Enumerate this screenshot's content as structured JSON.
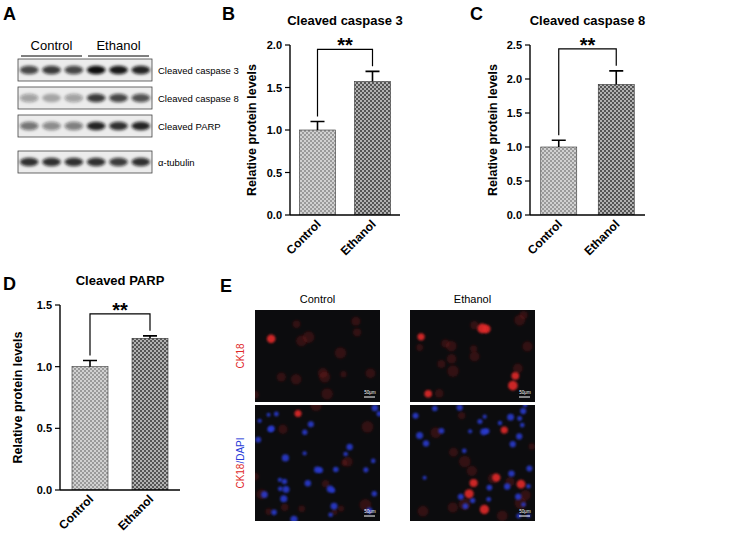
{
  "chart_data": [
    {
      "type": "bar",
      "panel": "B",
      "title": "Cleaved caspase 3",
      "ylabel": "Relative protein levels",
      "categories": [
        "Control",
        "Ethanol"
      ],
      "values": [
        1.0,
        1.57
      ],
      "errors": [
        0.1,
        0.12
      ],
      "colors": [
        "#9a9a9a",
        "#555555"
      ],
      "ylim": [
        0,
        2
      ],
      "yticks": [
        {
          "value": 0,
          "label": "0.0"
        },
        {
          "value": 0.5,
          "label": "0.5"
        },
        {
          "value": 1,
          "label": "1.0"
        },
        {
          "value": 1.5,
          "label": "1.5"
        },
        {
          "value": 2,
          "label": "2.0"
        }
      ],
      "significance": "**"
    },
    {
      "type": "bar",
      "panel": "C",
      "title": "Cleaved caspase 8",
      "ylabel": "Relative protein levels",
      "categories": [
        "Control",
        "Ethanol"
      ],
      "values": [
        1.0,
        1.92
      ],
      "errors": [
        0.1,
        0.2
      ],
      "colors": [
        "#9a9a9a",
        "#555555"
      ],
      "ylim": [
        0,
        2.5
      ],
      "yticks": [
        {
          "value": 0,
          "label": "0.0"
        },
        {
          "value": 0.5,
          "label": "0.5"
        },
        {
          "value": 1,
          "label": "1.0"
        },
        {
          "value": 1.5,
          "label": "1.5"
        },
        {
          "value": 2,
          "label": "2.0"
        },
        {
          "value": 2.5,
          "label": "2.5"
        }
      ],
      "significance": "**"
    },
    {
      "type": "bar",
      "panel": "D",
      "title": "Cleaved PARP",
      "ylabel": "Relative protein levels",
      "categories": [
        "Control",
        "Ethanol"
      ],
      "values": [
        1.0,
        1.23
      ],
      "errors": [
        0.05,
        0.02
      ],
      "colors": [
        "#9a9a9a",
        "#555555"
      ],
      "ylim": [
        0,
        1.5
      ],
      "yticks": [
        {
          "value": 0,
          "label": "0.0"
        },
        {
          "value": 0.5,
          "label": "0.5"
        },
        {
          "value": 1,
          "label": "1.0"
        },
        {
          "value": 1.5,
          "label": "1.5"
        }
      ],
      "significance": "**"
    }
  ],
  "blot": {
    "panel": "A",
    "groups": [
      "Control",
      "Ethanol"
    ],
    "rows": [
      "Cleaved caspase 3",
      "Cleaved caspase 8",
      "Cleaved PARP",
      "α-tubulin"
    ]
  },
  "images": {
    "panel": "E",
    "columns": [
      "Control",
      "Ethanol"
    ],
    "rows": [
      {
        "parts": [
          {
            "text": "CK18",
            "color": "#e02828"
          }
        ]
      },
      {
        "parts": [
          {
            "text": "CK18",
            "color": "#e02828"
          },
          {
            "text": "/DAPI",
            "color": "#2a3cd8"
          }
        ]
      }
    ],
    "scale_bar": "50μm"
  }
}
